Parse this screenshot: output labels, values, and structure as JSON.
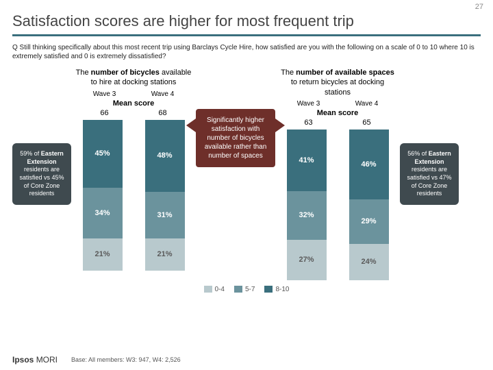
{
  "pageNumber": "27",
  "title": "Satisfaction scores are higher for most frequent trip",
  "question": "Q Still thinking specifically about this most recent trip using Barclays Cycle Hire, how satisfied are you with the following on a scale of 0 to 10 where 10 is extremely satisfied and 0 is extremely dissatisfied?",
  "colors": {
    "low": "#b8c9cd",
    "mid": "#6b939d",
    "high": "#3a6f7d",
    "white": "#ffffff",
    "labelText": "#444",
    "calloutBg": "#6e2f2a",
    "sideBg": "#3f4a4f"
  },
  "legend": [
    {
      "label": "0-4",
      "color": "#b8c9cd"
    },
    {
      "label": "5-7",
      "color": "#6b939d"
    },
    {
      "label": "8-10",
      "color": "#3a6f7d"
    }
  ],
  "leftSide": {
    "pct": "59%",
    "region": "Eastern Extension",
    "rest": "residents are satisfied vs 45% of Core Zone residents"
  },
  "rightSide": {
    "pct": "56%",
    "region": "Eastern Extension",
    "rest": "residents are satisfied vs 47% of Core Zone residents"
  },
  "midCallout": "Significantly higher satisfaction with number of bicycles available rather than number of spaces",
  "charts": [
    {
      "subtitle": "The <b>number of bicycles</b> available to hire at docking stations",
      "waveL": "Wave 3",
      "waveR": "Wave 4",
      "meanLabel": "Mean score",
      "scoreL": "66",
      "scoreR": "68",
      "bars": [
        {
          "segs": [
            {
              "v": 45,
              "c": "#3a6f7d",
              "txt": "#fff",
              "l": "45%"
            },
            {
              "v": 34,
              "c": "#6b939d",
              "txt": "#fff",
              "l": "34%"
            },
            {
              "v": 21,
              "c": "#b8c9cd",
              "txt": "#5a5a5a",
              "l": "21%"
            }
          ]
        },
        {
          "segs": [
            {
              "v": 48,
              "c": "#3a6f7d",
              "txt": "#fff",
              "l": "48%"
            },
            {
              "v": 31,
              "c": "#6b939d",
              "txt": "#fff",
              "l": "31%"
            },
            {
              "v": 21,
              "c": "#b8c9cd",
              "txt": "#5a5a5a",
              "l": "21%"
            }
          ]
        }
      ]
    },
    {
      "subtitle": "The <b>number of available spaces</b> to return bicycles at docking stations",
      "waveL": "Wave 3",
      "waveR": "Wave 4",
      "meanLabel": "Mean score",
      "scoreL": "63",
      "scoreR": "65",
      "bars": [
        {
          "segs": [
            {
              "v": 41,
              "c": "#3a6f7d",
              "txt": "#fff",
              "l": "41%"
            },
            {
              "v": 32,
              "c": "#6b939d",
              "txt": "#fff",
              "l": "32%"
            },
            {
              "v": 27,
              "c": "#b8c9cd",
              "txt": "#5a5a5a",
              "l": "27%"
            }
          ]
        },
        {
          "segs": [
            {
              "v": 46,
              "c": "#3a6f7d",
              "txt": "#fff",
              "l": "46%"
            },
            {
              "v": 29,
              "c": "#6b939d",
              "txt": "#fff",
              "l": "29%"
            },
            {
              "v": 24,
              "c": "#b8c9cd",
              "txt": "#5a5a5a",
              "l": "24%"
            }
          ]
        }
      ]
    }
  ],
  "base": "Base: All members: W3: 947, W4: 2,526",
  "logo": {
    "brand": "Ipsos",
    "sub": "MORI"
  }
}
